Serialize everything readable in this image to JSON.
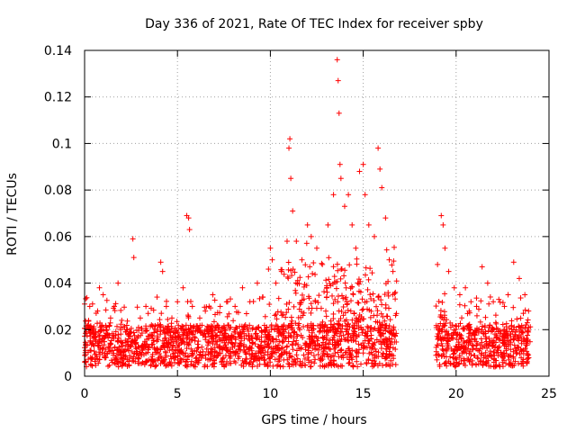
{
  "chart_data": {
    "type": "scatter",
    "title": "Day 336 of 2021, Rate Of TEC Index for receiver spby",
    "xlabel": "GPS time / hours",
    "ylabel": "ROTI / TECUs",
    "xlim": [
      0,
      25
    ],
    "ylim": [
      0,
      0.14
    ],
    "xticks": [
      0,
      5,
      10,
      15,
      20,
      25
    ],
    "xtick_labels": [
      "0",
      "5",
      "10",
      "15",
      "20",
      "25"
    ],
    "yticks": [
      0,
      0.02,
      0.04,
      0.06,
      0.08,
      0.1,
      0.12,
      0.14
    ],
    "ytick_labels": [
      "0",
      "0.02",
      "0.04",
      "0.06",
      "0.08",
      "0.1",
      "0.12",
      "0.14"
    ],
    "grid": true,
    "marker": "+",
    "color": "#ff0000",
    "data_gap_hours": [
      16.8,
      18.9
    ],
    "series": [
      {
        "name": "ROTI",
        "x": [
          0.2,
          0.5,
          0.7,
          0.8,
          1.0,
          1.2,
          1.4,
          1.6,
          1.8,
          2.0,
          2.3,
          2.6,
          2.65,
          3.0,
          3.3,
          3.6,
          3.9,
          4.1,
          4.2,
          4.4,
          4.7,
          5.0,
          5.3,
          5.5,
          5.6,
          5.65,
          5.8,
          6.2,
          6.5,
          6.9,
          7.3,
          7.7,
          8.1,
          8.5,
          8.9,
          9.3,
          9.6,
          9.9,
          10.0,
          10.1,
          10.3,
          10.6,
          10.9,
          11.0,
          11.05,
          11.1,
          11.2,
          11.4,
          11.7,
          12.0,
          12.2,
          12.5,
          12.8,
          13.1,
          13.4,
          13.6,
          13.65,
          13.7,
          13.75,
          13.8,
          14.0,
          14.2,
          14.4,
          14.6,
          14.8,
          15.0,
          15.1,
          15.3,
          15.6,
          15.8,
          15.9,
          16.0,
          16.2,
          16.4,
          16.6,
          19.0,
          19.2,
          19.3,
          19.4,
          19.6,
          19.9,
          20.2,
          20.5,
          20.8,
          21.1,
          21.4,
          21.7,
          22.0,
          22.3,
          22.6,
          22.8,
          23.1,
          23.4,
          23.7,
          23.9
        ],
        "y": [
          0.022,
          0.018,
          0.028,
          0.038,
          0.035,
          0.02,
          0.025,
          0.03,
          0.04,
          0.024,
          0.02,
          0.059,
          0.051,
          0.025,
          0.03,
          0.022,
          0.034,
          0.049,
          0.045,
          0.03,
          0.025,
          0.032,
          0.038,
          0.069,
          0.068,
          0.063,
          0.03,
          0.025,
          0.028,
          0.035,
          0.03,
          0.032,
          0.03,
          0.038,
          0.032,
          0.04,
          0.034,
          0.046,
          0.055,
          0.05,
          0.04,
          0.045,
          0.058,
          0.098,
          0.102,
          0.085,
          0.071,
          0.058,
          0.05,
          0.065,
          0.06,
          0.055,
          0.048,
          0.065,
          0.078,
          0.136,
          0.127,
          0.113,
          0.091,
          0.085,
          0.073,
          0.078,
          0.065,
          0.055,
          0.088,
          0.091,
          0.078,
          0.065,
          0.06,
          0.098,
          0.089,
          0.081,
          0.068,
          0.05,
          0.045,
          0.048,
          0.069,
          0.065,
          0.055,
          0.045,
          0.038,
          0.035,
          0.038,
          0.032,
          0.03,
          0.047,
          0.04,
          0.032,
          0.033,
          0.03,
          0.035,
          0.049,
          0.042,
          0.035,
          0.028
        ]
      }
    ]
  }
}
